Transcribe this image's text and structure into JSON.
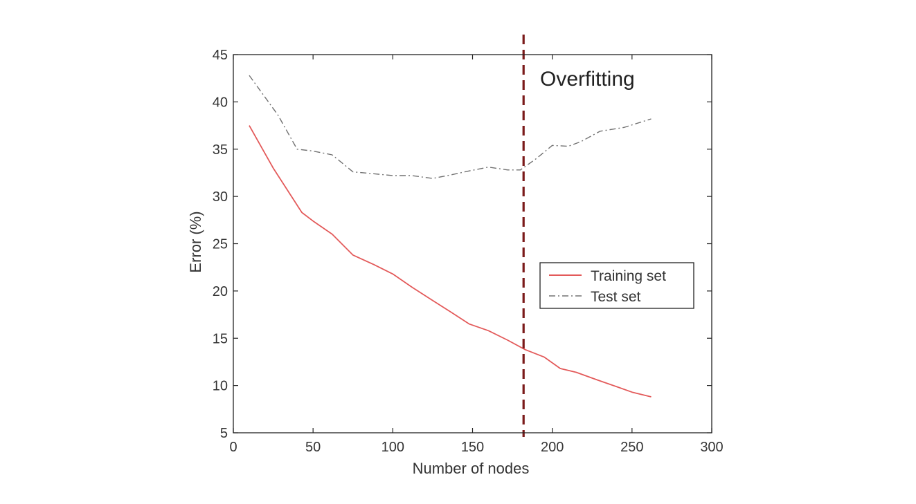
{
  "chart_data": {
    "type": "line",
    "title": "",
    "xlabel": "Number of nodes",
    "ylabel": "Error (%)",
    "xlim": [
      0,
      300
    ],
    "ylim": [
      5,
      45
    ],
    "xticks": [
      0,
      50,
      100,
      150,
      200,
      250,
      300
    ],
    "yticks": [
      5,
      10,
      15,
      20,
      25,
      30,
      35,
      40,
      45
    ],
    "xtick_labels": [
      "0",
      "50",
      "100",
      "150",
      "200",
      "250",
      "300"
    ],
    "ytick_labels": [
      "5",
      "10",
      "15",
      "20",
      "25",
      "30",
      "35",
      "40",
      "45"
    ],
    "grid": false,
    "legend_position": "center-right",
    "series": [
      {
        "name": "Training set",
        "color": "#e35a5a",
        "style": "solid",
        "x": [
          10,
          25,
          43,
          50,
          62,
          75,
          88,
          100,
          112,
          125,
          137,
          148,
          160,
          172,
          183,
          195,
          205,
          215,
          228,
          240,
          250,
          262
        ],
        "y": [
          37.5,
          33.0,
          28.3,
          27.4,
          26.0,
          23.8,
          22.8,
          21.8,
          20.4,
          19.0,
          17.7,
          16.5,
          15.8,
          14.8,
          13.8,
          13.0,
          11.8,
          11.4,
          10.6,
          9.9,
          9.3,
          8.8
        ]
      },
      {
        "name": "Test set",
        "color": "#707070",
        "style": "dashdot",
        "x": [
          10,
          28,
          40,
          50,
          62,
          75,
          88,
          100,
          112,
          125,
          137,
          148,
          160,
          172,
          180,
          190,
          200,
          210,
          218,
          230,
          245,
          262
        ],
        "y": [
          42.8,
          38.6,
          35.0,
          34.8,
          34.4,
          32.6,
          32.4,
          32.2,
          32.2,
          31.9,
          32.3,
          32.7,
          33.1,
          32.8,
          32.8,
          34.0,
          35.4,
          35.3,
          35.8,
          36.9,
          37.3,
          38.2
        ]
      }
    ],
    "annotations": [
      {
        "type": "vline",
        "x": 182,
        "color": "#7b1a1a",
        "style": "dashed"
      },
      {
        "type": "text",
        "text": "Overfitting"
      }
    ]
  }
}
